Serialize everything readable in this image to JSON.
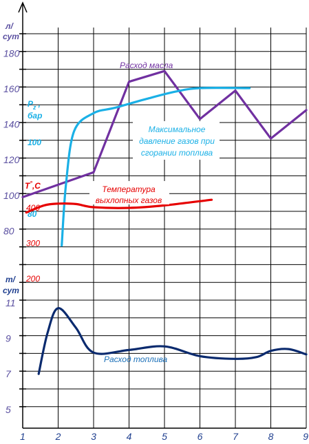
{
  "chart_data": {
    "type": "line",
    "colors": {
      "oil": "#7030a0",
      "pressure": "#1ab0e6",
      "temperature": "#e60000",
      "fuel": "#0a2a6e",
      "axis_text": "#5a4fa0",
      "grid": "#000000"
    },
    "x": {
      "ticks": [
        1,
        2,
        3,
        4,
        5,
        6,
        7,
        8,
        9
      ],
      "labels": [
        "1",
        "2",
        "3",
        "4",
        "5",
        "6",
        "7",
        "8",
        "9"
      ],
      "range": [
        1,
        9
      ]
    },
    "axes": {
      "oil": {
        "unit": "л/ сут",
        "unit_lines": [
          "л/",
          "сут"
        ],
        "ticks": [
          80,
          100,
          120,
          140,
          160,
          180
        ],
        "labels": [
          "80",
          "100",
          "120",
          "140",
          "160",
          "180"
        ]
      },
      "pressure": {
        "unit": "Pz , бар",
        "unit_main": "P",
        "unit_sub": "z",
        "unit_comma": ",",
        "unit_second": "бар",
        "ticks": [
          80,
          100
        ],
        "labels": [
          "80",
          "100"
        ]
      },
      "temperature": {
        "unit": "T,°C",
        "unit_main": "T",
        "unit_deg": "°",
        "unit_c": ",C",
        "ticks": [
          200,
          300,
          400
        ],
        "labels": [
          "200",
          "300",
          "400"
        ]
      },
      "fuel": {
        "unit": "т/ сут",
        "unit_lines": [
          "т/",
          "сут"
        ],
        "ticks": [
          5,
          7,
          9,
          11
        ],
        "labels": [
          "5",
          "7",
          "9",
          "11"
        ]
      }
    },
    "series": [
      {
        "key": "oil",
        "name": "Расход масла",
        "axis": "oil",
        "points": [
          [
            1.0,
            99
          ],
          [
            3.0,
            113
          ],
          [
            4.0,
            164
          ],
          [
            5.0,
            170
          ],
          [
            6.0,
            143
          ],
          [
            7.0,
            159
          ],
          [
            8.0,
            132
          ],
          [
            9.0,
            148
          ]
        ],
        "smooth": false
      },
      {
        "key": "pressure",
        "name_lines": [
          "Максимальное",
          "давление газов при",
          "сгорании топлива"
        ],
        "axis": "pressure",
        "points": [
          [
            2.1,
            71
          ],
          [
            2.22,
            88
          ],
          [
            2.45,
            103
          ],
          [
            3.0,
            108
          ],
          [
            3.6,
            109.5
          ],
          [
            4.5,
            112
          ],
          [
            5.3,
            114
          ],
          [
            6.0,
            115
          ],
          [
            7.4,
            115
          ]
        ],
        "smooth": true
      },
      {
        "key": "temperature",
        "name_lines": [
          "Температура",
          "выхлопных газов"
        ],
        "axis": "temperature",
        "points": [
          [
            1.1,
            385
          ],
          [
            1.6,
            405
          ],
          [
            2.0,
            410
          ],
          [
            2.5,
            409
          ],
          [
            3.0,
            400
          ],
          [
            4.0,
            398
          ],
          [
            5.0,
            405
          ],
          [
            6.33,
            421
          ]
        ],
        "smooth": true
      },
      {
        "key": "fuel",
        "name": "Расход топлива",
        "axis": "fuel",
        "points": [
          [
            1.45,
            7.0
          ],
          [
            1.7,
            9.3
          ],
          [
            2.0,
            10.7
          ],
          [
            2.5,
            9.6
          ],
          [
            3.0,
            8.2
          ],
          [
            4.0,
            8.35
          ],
          [
            5.0,
            8.55
          ],
          [
            6.0,
            8.0
          ],
          [
            7.0,
            7.85
          ],
          [
            7.6,
            7.95
          ],
          [
            8.0,
            8.3
          ],
          [
            8.5,
            8.4
          ],
          [
            9.0,
            8.1
          ]
        ],
        "smooth": true
      }
    ]
  }
}
